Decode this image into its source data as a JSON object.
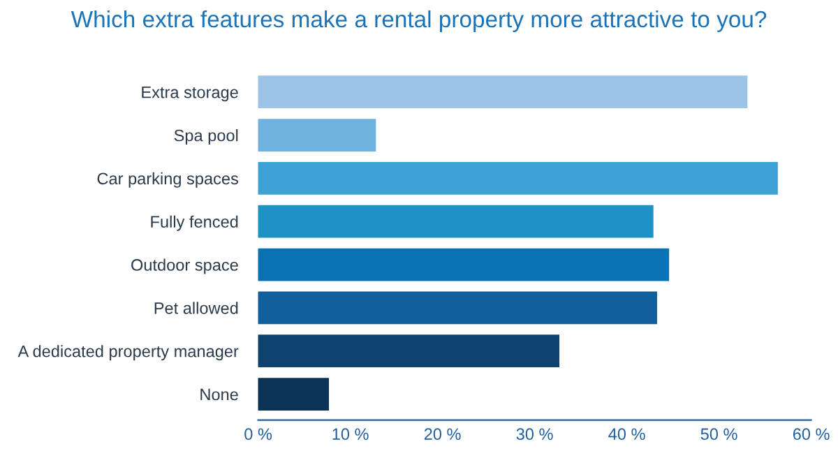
{
  "chart_data": {
    "type": "bar",
    "orientation": "horizontal",
    "title": "Which extra features make a rental property more attractive to you?",
    "categories": [
      "Extra storage",
      "Spa pool",
      "Car parking spaces",
      "Fully fenced",
      "Outdoor space",
      "Pet allowed",
      "A dedicated property manager",
      "None"
    ],
    "values": [
      53,
      12.7,
      56.3,
      42.8,
      44.5,
      43.2,
      32.6,
      7.6
    ],
    "colors": [
      "#9dc3e6",
      "#70b2df",
      "#3ca1d3",
      "#1d92c4",
      "#0a72b3",
      "#125f9d",
      "#0f426e",
      "#0b3356"
    ],
    "xlim": [
      0,
      60
    ],
    "xticks": [
      {
        "value": 0,
        "label": "0 %"
      },
      {
        "value": 10,
        "label": "10 %"
      },
      {
        "value": 20,
        "label": "20 %"
      },
      {
        "value": 30,
        "label": "30 %"
      },
      {
        "value": 40,
        "label": "40 %"
      },
      {
        "value": 50,
        "label": "50 %"
      },
      {
        "value": 60,
        "label": "60 %"
      }
    ],
    "grid": false,
    "legend": false
  }
}
